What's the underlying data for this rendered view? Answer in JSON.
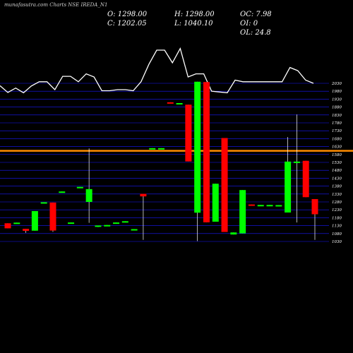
{
  "header": {
    "watermark": "munafasutra.com Charts NSE IREDA_N1",
    "open": "O: 1298.00",
    "high": "H: 1298.00",
    "change": "OC: 7.98",
    "close": "C: 1202.05",
    "low": "L: 1040.10",
    "oi_change": "OI: 0",
    "ol": "OL: 24.8"
  },
  "colors": {
    "background": "#000000",
    "bull": "#00ff00",
    "bear": "#ff0000",
    "gridline": "#1a1aff",
    "level_line": "#ff8c00",
    "volume_line": "#ffffff",
    "text": "#ffffff"
  },
  "chart_data": {
    "type": "candlestick",
    "y_ticks": [
      "2030",
      "1980",
      "1930",
      "1880",
      "1830",
      "1780",
      "1730",
      "1680",
      "1630",
      "1580",
      "1530",
      "1480",
      "1430",
      "1380",
      "1330",
      "1280",
      "1230",
      "1180",
      "1130",
      "1080",
      "1030"
    ],
    "ylim": [
      1030,
      2050
    ],
    "horizontal_level": 1603,
    "candles": [
      {
        "open": 1145,
        "high": 1145,
        "low": 1113,
        "close": 1113,
        "dir": "down"
      },
      {
        "open": 1149,
        "high": 1149,
        "low": 1144,
        "close": 1144,
        "dir": "flat"
      },
      {
        "open": 1110,
        "high": 1110,
        "low": 1084,
        "close": 1097,
        "dir": "down"
      },
      {
        "open": 1098,
        "high": 1222,
        "low": 1098,
        "close": 1222,
        "dir": "up"
      },
      {
        "open": 1272,
        "high": 1278,
        "low": 1272,
        "close": 1278,
        "dir": "up"
      },
      {
        "open": 1276,
        "high": 1276,
        "low": 1091,
        "close": 1099,
        "dir": "down"
      },
      {
        "open": 1346,
        "high": 1346,
        "low": 1341,
        "close": 1341,
        "dir": "flat"
      },
      {
        "open": 1150,
        "high": 1150,
        "low": 1145,
        "close": 1145,
        "dir": "flat"
      },
      {
        "open": 1375,
        "high": 1375,
        "low": 1370,
        "close": 1370,
        "dir": "flat"
      },
      {
        "open": 1280,
        "high": 1618,
        "low": 1148,
        "close": 1361,
        "dir": "up"
      },
      {
        "open": 1128,
        "high": 1128,
        "low": 1121,
        "close": 1131,
        "dir": "up"
      },
      {
        "open": 1134,
        "high": 1134,
        "low": 1130,
        "close": 1130,
        "dir": "flat"
      },
      {
        "open": 1150,
        "high": 1150,
        "low": 1146,
        "close": 1146,
        "dir": "flat"
      },
      {
        "open": 1158,
        "high": 1158,
        "low": 1153,
        "close": 1153,
        "dir": "flat"
      },
      {
        "open": 1108,
        "high": 1108,
        "low": 1103,
        "close": 1103,
        "dir": "flat"
      },
      {
        "open": 1331,
        "high": 1331,
        "low": 1040,
        "close": 1315,
        "dir": "down"
      },
      {
        "open": 1620,
        "high": 1620,
        "low": 1615,
        "close": 1615,
        "dir": "flat"
      },
      {
        "open": 1620,
        "high": 1620,
        "low": 1615,
        "close": 1615,
        "dir": "flat"
      },
      {
        "open": 1910,
        "high": 1910,
        "low": 1905,
        "close": 1905,
        "dir": "down"
      },
      {
        "open": 1905,
        "high": 1905,
        "low": 1900,
        "close": 1900,
        "dir": "flat"
      },
      {
        "open": 1895,
        "high": 1895,
        "low": 1536,
        "close": 1536,
        "dir": "down"
      },
      {
        "open": 1212,
        "high": 2040,
        "low": 1032,
        "close": 2040,
        "dir": "up"
      },
      {
        "open": 2038,
        "high": 2038,
        "low": 1151,
        "close": 1151,
        "dir": "down"
      },
      {
        "open": 1155,
        "high": 1395,
        "low": 1155,
        "close": 1395,
        "dir": "up"
      },
      {
        "open": 1684,
        "high": 1684,
        "low": 1090,
        "close": 1090,
        "dir": "down"
      },
      {
        "open": 1087,
        "high": 1087,
        "low": 1074,
        "close": 1074,
        "dir": "up"
      },
      {
        "open": 1081,
        "high": 1355,
        "low": 1081,
        "close": 1355,
        "dir": "up"
      },
      {
        "open": 1264,
        "high": 1264,
        "low": 1258,
        "close": 1258,
        "dir": "down"
      },
      {
        "open": 1261,
        "high": 1261,
        "low": 1258,
        "close": 1258,
        "dir": "flat"
      },
      {
        "open": 1261,
        "high": 1261,
        "low": 1258,
        "close": 1258,
        "dir": "flat"
      },
      {
        "open": 1260,
        "high": 1260,
        "low": 1257,
        "close": 1257,
        "dir": "flat"
      },
      {
        "open": 1213,
        "high": 1690,
        "low": 1213,
        "close": 1535,
        "dir": "up"
      },
      {
        "open": 1528,
        "high": 1833,
        "low": 1150,
        "close": 1535,
        "dir": "up"
      },
      {
        "open": 1540,
        "high": 1540,
        "low": 1310,
        "close": 1310,
        "dir": "down"
      },
      {
        "open": 1298,
        "high": 1298,
        "low": 1040,
        "close": 1202,
        "dir": "down"
      }
    ],
    "volume_line": [
      2015,
      1972,
      2000,
      1970,
      2013,
      2040,
      2040,
      1990,
      2074,
      2074,
      2040,
      2090,
      2070,
      1983,
      1983,
      1990,
      1990,
      1983,
      2040,
      2150,
      2240,
      2240,
      2160,
      2250,
      2070,
      2090,
      2090,
      1980,
      1975,
      1970,
      2050,
      2040,
      2040,
      2040,
      2040,
      2040,
      2040,
      2130,
      2110,
      2050,
      2030
    ]
  }
}
